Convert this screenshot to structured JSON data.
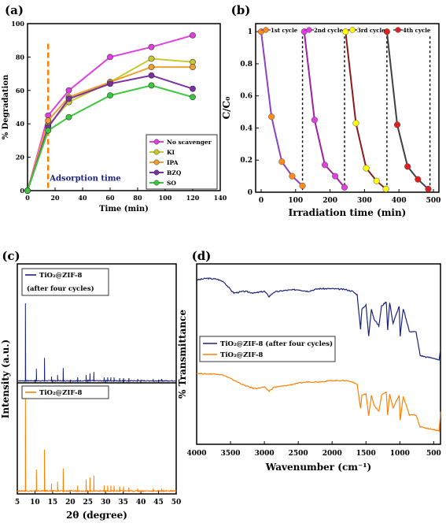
{
  "chart_data": [
    {
      "panel": "(a)",
      "type": "line",
      "xlabel": "Time (min)",
      "ylabel": "% Degradation",
      "xlim": [
        0,
        140
      ],
      "ylim": [
        0,
        100
      ],
      "xticks": [
        0,
        20,
        40,
        60,
        80,
        100,
        120,
        140
      ],
      "yticks": [
        0,
        20,
        40,
        60,
        80,
        100
      ],
      "annotation": "Adsorption time",
      "annotation_x": 15,
      "legend_position": "bottom-right",
      "x": [
        0,
        15,
        30,
        60,
        90,
        120
      ],
      "series": [
        {
          "name": "No scavenger",
          "color": "#e040e0",
          "values": [
            0,
            45,
            60,
            80,
            86,
            93
          ]
        },
        {
          "name": "KI",
          "color": "#c8c832",
          "values": [
            0,
            39,
            53,
            65,
            79,
            77
          ]
        },
        {
          "name": "IPA",
          "color": "#f0a030",
          "values": [
            0,
            42,
            56,
            65,
            74,
            74
          ]
        },
        {
          "name": "BZQ",
          "color": "#7b2fa0",
          "values": [
            0,
            38,
            55,
            64,
            69,
            61
          ]
        },
        {
          "name": "SO",
          "color": "#3cc83c",
          "values": [
            0,
            36,
            44,
            57,
            63,
            56
          ]
        }
      ]
    },
    {
      "panel": "(b)",
      "type": "line",
      "xlabel": "Irradiation time (min)",
      "ylabel": "C/C₀",
      "xlim": [
        0,
        500
      ],
      "ylim": [
        0,
        1.05
      ],
      "xticks": [
        0,
        100,
        200,
        300,
        400,
        500
      ],
      "yticks": [
        0.0,
        0.2,
        0.4,
        0.6,
        0.8,
        1.0
      ],
      "cycle_separators": [
        120,
        242,
        365,
        490
      ],
      "legend_position": "top",
      "series": [
        {
          "name": "1st cycle",
          "color": "#9040c0",
          "marker": "#ff8c1a",
          "x": [
            0,
            30,
            60,
            90,
            120
          ],
          "values": [
            1.0,
            0.47,
            0.19,
            0.1,
            0.04
          ]
        },
        {
          "name": "2nd cycle",
          "color": "#a020a0",
          "marker": "#e040e0",
          "x": [
            125,
            155,
            185,
            215,
            242
          ],
          "values": [
            1.0,
            0.45,
            0.17,
            0.1,
            0.03
          ]
        },
        {
          "name": "3rd cycle",
          "color": "#8b1a1a",
          "marker": "#ffff00",
          "x": [
            245,
            275,
            305,
            335,
            362
          ],
          "values": [
            1.0,
            0.43,
            0.15,
            0.07,
            0.02
          ]
        },
        {
          "name": "4th cycle",
          "color": "#404040",
          "marker": "#e02020",
          "x": [
            365,
            395,
            425,
            455,
            485
          ],
          "values": [
            1.0,
            0.42,
            0.16,
            0.08,
            0.02
          ]
        }
      ]
    },
    {
      "panel": "(c)",
      "type": "line",
      "xlabel": "2θ (degree)",
      "ylabel": "Intensity (a.u.)",
      "xlim": [
        5,
        50
      ],
      "xticks": [
        5,
        10,
        15,
        20,
        25,
        30,
        35,
        40,
        45,
        50
      ],
      "series": [
        {
          "name": "TiO₂@ZIF-8 (after four cycles)",
          "color": "#1a237e",
          "peaks_x": [
            7.3,
            10.4,
            12.7,
            14.7,
            16.4,
            18.0,
            22.1,
            24.5,
            25.6,
            26.7,
            29.6,
            30.6,
            31.5,
            32.4,
            34.0,
            35.1,
            36.6,
            39.1,
            43.5,
            45.9
          ],
          "peaks_y": [
            1.0,
            0.16,
            0.3,
            0.06,
            0.08,
            0.17,
            0.05,
            0.08,
            0.1,
            0.12,
            0.05,
            0.05,
            0.05,
            0.05,
            0.04,
            0.04,
            0.04,
            0.03,
            0.03,
            0.03
          ]
        },
        {
          "name": "TiO₂@ZIF-8",
          "color": "#ff8000",
          "peaks_x": [
            7.3,
            10.4,
            12.7,
            14.7,
            16.4,
            18.0,
            22.1,
            24.5,
            25.6,
            26.7,
            29.6,
            30.6,
            31.5,
            32.4,
            34.0,
            35.1,
            36.6,
            39.1,
            43.5,
            45.9
          ],
          "peaks_y": [
            1.0,
            0.22,
            0.42,
            0.08,
            0.1,
            0.23,
            0.06,
            0.12,
            0.14,
            0.16,
            0.06,
            0.06,
            0.06,
            0.06,
            0.05,
            0.05,
            0.04,
            0.03,
            0.03,
            0.03
          ]
        }
      ]
    },
    {
      "panel": "(d)",
      "type": "line",
      "xlabel": "Wavenumber (cm⁻¹)",
      "ylabel": "% Transmittance",
      "xlim": [
        4000,
        400
      ],
      "xticks": [
        4000,
        3500,
        3000,
        2500,
        2000,
        1500,
        1000,
        500
      ],
      "series": [
        {
          "name": "TiO₂@ZIF-8 (after four cycles)",
          "color": "#1a237e",
          "x": [
            4000,
            3850,
            3700,
            3600,
            3500,
            3450,
            3300,
            3150,
            3000,
            2930,
            2860,
            2700,
            2500,
            2360,
            2200,
            2000,
            1800,
            1700,
            1630,
            1580,
            1560,
            1500,
            1460,
            1420,
            1380,
            1310,
            1270,
            1200,
            1180,
            1150,
            1100,
            1010,
            995,
            950,
            860,
            760,
            700,
            600,
            500,
            420,
            400
          ],
          "values": [
            0.95,
            0.97,
            0.96,
            0.93,
            0.84,
            0.8,
            0.82,
            0.8,
            0.82,
            0.76,
            0.81,
            0.83,
            0.84,
            0.82,
            0.85,
            0.85,
            0.84,
            0.82,
            0.78,
            0.38,
            0.62,
            0.66,
            0.3,
            0.62,
            0.5,
            0.42,
            0.65,
            0.7,
            0.38,
            0.69,
            0.45,
            0.65,
            0.3,
            0.62,
            0.36,
            0.35,
            0.08,
            0.06,
            0.05,
            0.02,
            0.15
          ]
        },
        {
          "name": "TiO₂@ZIF-8",
          "color": "#ff8000",
          "x": [
            4000,
            3850,
            3700,
            3600,
            3500,
            3400,
            3300,
            3150,
            3000,
            2930,
            2860,
            2700,
            2500,
            2360,
            2200,
            2000,
            1800,
            1700,
            1630,
            1580,
            1560,
            1500,
            1460,
            1420,
            1380,
            1310,
            1270,
            1200,
            1180,
            1150,
            1100,
            1010,
            995,
            950,
            860,
            760,
            700,
            600,
            500,
            420,
            400
          ],
          "values": [
            0.93,
            0.92,
            0.92,
            0.9,
            0.85,
            0.8,
            0.75,
            0.7,
            0.72,
            0.66,
            0.72,
            0.74,
            0.78,
            0.8,
            0.8,
            0.82,
            0.82,
            0.8,
            0.76,
            0.4,
            0.6,
            0.62,
            0.28,
            0.6,
            0.45,
            0.35,
            0.6,
            0.65,
            0.3,
            0.62,
            0.4,
            0.6,
            0.22,
            0.58,
            0.3,
            0.3,
            0.12,
            0.1,
            0.08,
            0.06,
            0.35
          ]
        }
      ]
    }
  ]
}
